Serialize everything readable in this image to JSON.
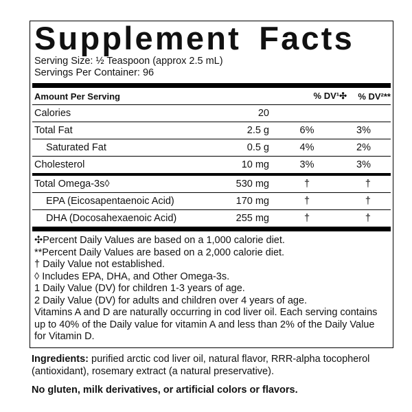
{
  "header": {
    "title": "Supplement Facts",
    "serving_size": "Serving Size: ½ Teaspoon (approx 2.5 mL)",
    "servings_per_container": "Servings Per Container: 96"
  },
  "table": {
    "columns": [
      "Amount Per Serving",
      "% DV¹✣",
      "% DV²**"
    ],
    "sections": [
      [
        [
          "Calories",
          "20",
          "",
          ""
        ],
        [
          "Total Fat",
          "2.5 g",
          "6%",
          "3%"
        ],
        [
          "Saturated Fat",
          "0.5 g",
          "4%",
          "2%"
        ],
        [
          "Cholesterol",
          "10 mg",
          "3%",
          "3%"
        ]
      ],
      [
        [
          "Total Omega-3s◊",
          "530 mg",
          "†",
          "†"
        ],
        [
          "EPA (Eicosapentaenoic Acid)",
          "170 mg",
          "†",
          "†"
        ],
        [
          "DHA (Docosahexaenoic Acid)",
          "255 mg",
          "†",
          "†"
        ]
      ]
    ]
  },
  "footnotes": [
    "✣Percent Daily Values are based on a 1,000 calorie diet.",
    "**Percent Daily Values are based on a 2,000 calorie diet.",
    "† Daily Value not established.",
    "◊ Includes EPA, DHA, and Other Omega-3s.",
    "1 Daily Value (DV) for children 1-3 years of age.",
    "2 Daily Value (DV) for adults and children over 4 years of age.",
    "Vitamins A and D are naturally occurring in cod liver oil. Each serving contains up to 40% of the Daily value for vitamin A and less than 2% of the Daily Value for Vitamin D."
  ],
  "ingredients": {
    "label": "Ingredients:",
    "text": "purified arctic cod liver oil, natural flavor, RRR-alpha tocopherol (antioxidant), rosemary extract (a natural preservative)."
  },
  "allergen_note": "No gluten, milk derivatives, or artificial colors or flavors."
}
